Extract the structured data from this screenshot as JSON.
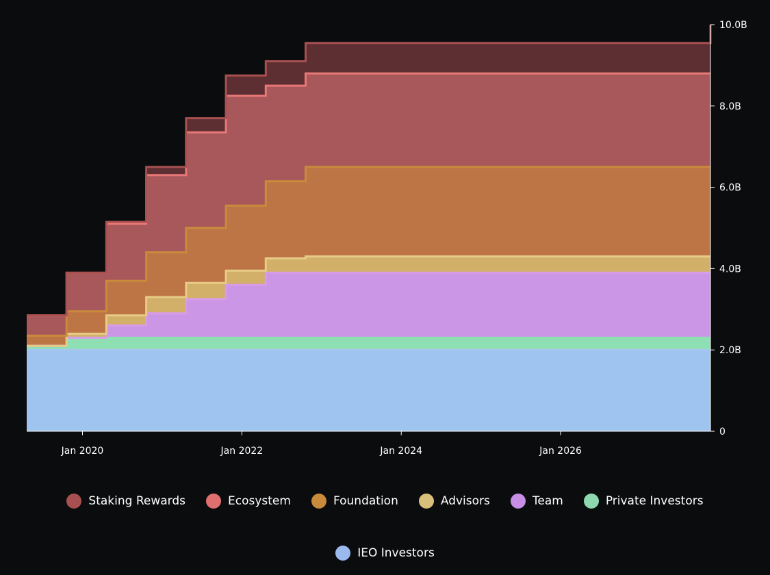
{
  "chart_data": {
    "type": "area",
    "stacked": true,
    "x_unit": "year",
    "x_range": [
      2019.3,
      2027.88
    ],
    "ylim": [
      0,
      10000000000
    ],
    "y_ticks": [
      {
        "value": 0,
        "label": "0"
      },
      {
        "value": 2000000000,
        "label": "2.0B"
      },
      {
        "value": 4000000000,
        "label": "4.0B"
      },
      {
        "value": 6000000000,
        "label": "6.0B"
      },
      {
        "value": 8000000000,
        "label": "8.0B"
      },
      {
        "value": 10000000000,
        "label": "10.0B"
      }
    ],
    "x_ticks": [
      {
        "value": 2020.0,
        "label": "Jan 2020"
      },
      {
        "value": 2022.0,
        "label": "Jan 2022"
      },
      {
        "value": 2024.0,
        "label": "Jan 2024"
      },
      {
        "value": 2026.0,
        "label": "Jan 2026"
      }
    ],
    "y_axis_position": "right",
    "legend_position": "bottom",
    "x": [
      2019.3,
      2019.8,
      2020.3,
      2020.8,
      2021.3,
      2021.8,
      2022.3,
      2022.8,
      2027.88
    ],
    "series": [
      {
        "name": "IEO Investors",
        "color": "#a0c4f0",
        "values": [
          2.0,
          2.0,
          2.0,
          2.0,
          2.0,
          2.0,
          2.0,
          2.0,
          2.0
        ]
      },
      {
        "name": "Private Investors",
        "color": "#8ee0b4",
        "values": [
          0.1,
          0.3,
          0.3,
          0.3,
          0.3,
          0.3,
          0.3,
          0.3,
          0.3
        ]
      },
      {
        "name": "Team",
        "color": "#cc96e6",
        "values": [
          0.0,
          0.0,
          0.3,
          0.6,
          0.95,
          1.3,
          1.6,
          1.6,
          1.6
        ]
      },
      {
        "name": "Advisors",
        "color": "#d2b06a",
        "values": [
          0.0,
          0.1,
          0.25,
          0.4,
          0.4,
          0.35,
          0.35,
          0.4,
          0.4
        ]
      },
      {
        "name": "Foundation",
        "color": "#be7546",
        "values": [
          0.25,
          0.55,
          0.85,
          1.1,
          1.35,
          1.6,
          1.9,
          2.2,
          2.2
        ]
      },
      {
        "name": "Ecosystem",
        "color": "#a8585a",
        "values": [
          0.5,
          0.95,
          1.4,
          1.9,
          2.35,
          2.7,
          2.35,
          2.3,
          2.3
        ]
      },
      {
        "name": "Staking Rewards",
        "color": "#5e2f32",
        "values": [
          0.0,
          0.0,
          0.05,
          0.2,
          0.35,
          0.5,
          0.6,
          0.75,
          1.2
        ]
      }
    ],
    "series_unit": "billions"
  },
  "legend": {
    "items": [
      {
        "label": "Staking Rewards",
        "color": "#a85050"
      },
      {
        "label": "Ecosystem",
        "color": "#e07070"
      },
      {
        "label": "Foundation",
        "color": "#c98a3c"
      },
      {
        "label": "Advisors",
        "color": "#d9c07a"
      },
      {
        "label": "Team",
        "color": "#c88ee6"
      },
      {
        "label": "Private Investors",
        "color": "#8ed8b0"
      },
      {
        "label": "IEO Investors",
        "color": "#9abaee"
      }
    ]
  },
  "colors": {
    "background": "#0b0c0e",
    "axis": "#ffffff",
    "text": "#ffffff"
  }
}
